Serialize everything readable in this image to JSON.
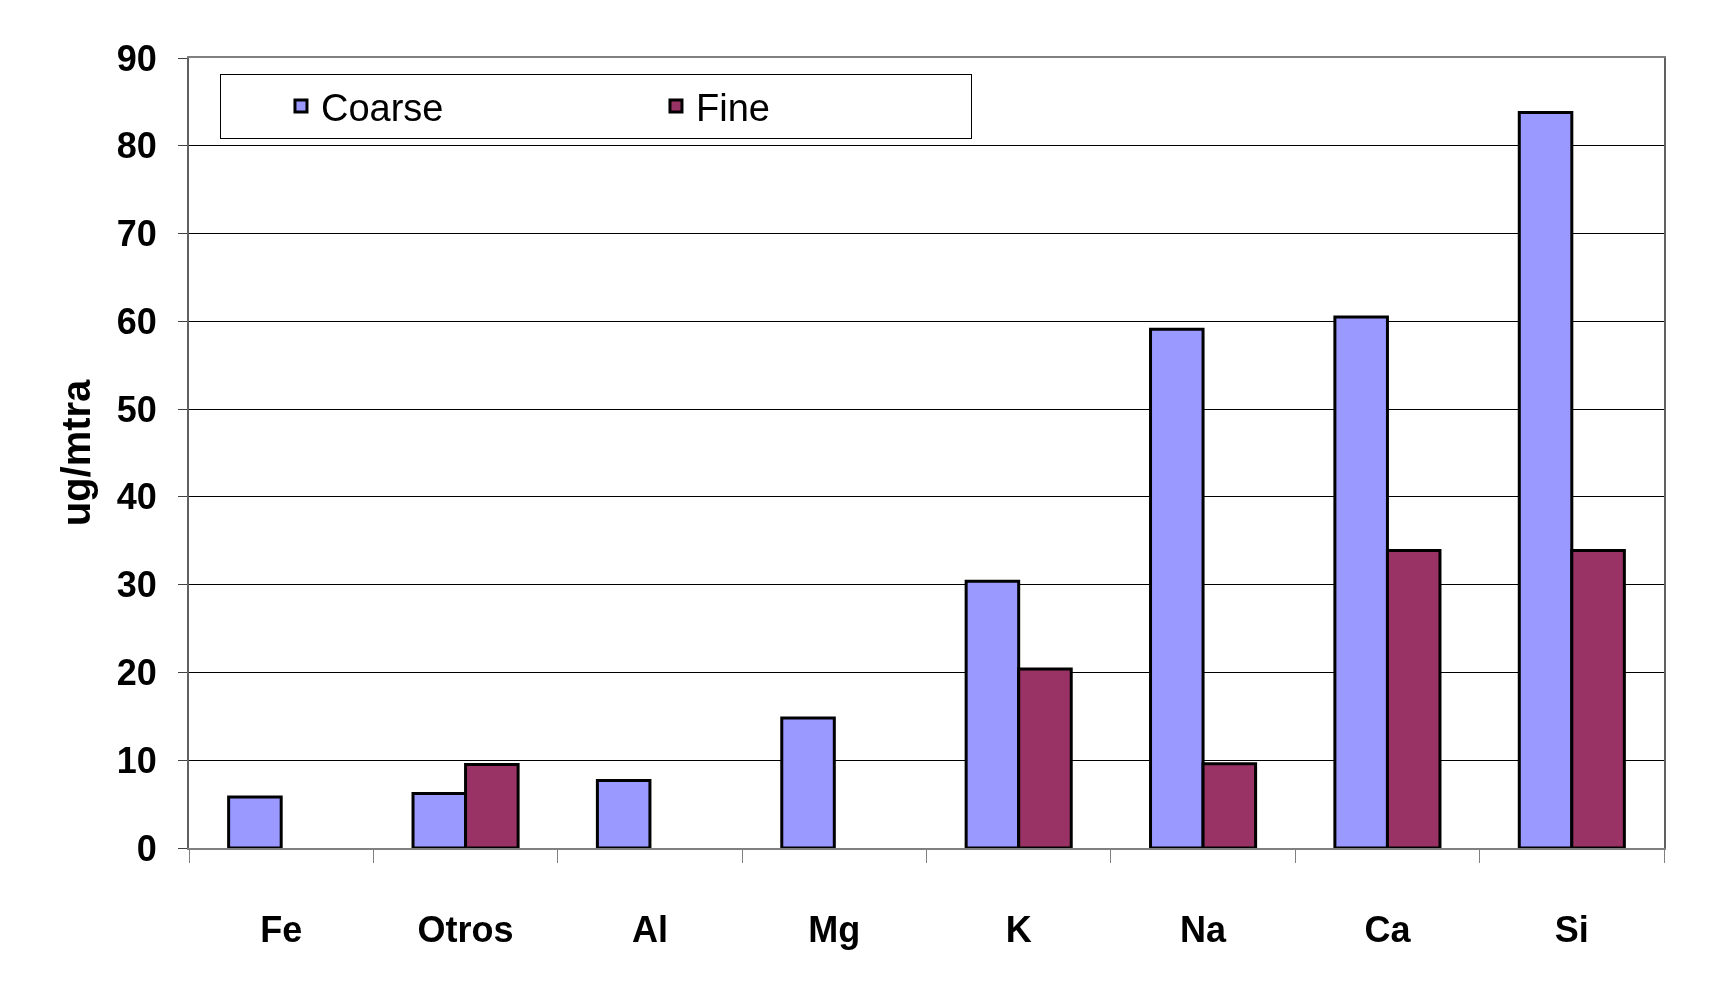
{
  "chart_data": {
    "type": "bar",
    "ylabel": "ug/mtra",
    "categories": [
      "Fe",
      "Otros",
      "Al",
      "Mg",
      "K",
      "Na",
      "Ca",
      "Si"
    ],
    "series": [
      {
        "name": "Coarse",
        "color": "#9999ff",
        "values": [
          5.8,
          6.2,
          7.7,
          14.8,
          30.4,
          59.1,
          60.5,
          83.8
        ]
      },
      {
        "name": "Fine",
        "color": "#993366",
        "values": [
          null,
          9.5,
          null,
          null,
          20.4,
          9.6,
          33.9,
          33.9
        ]
      }
    ],
    "ylim": [
      0,
      90
    ],
    "yticks": [
      0,
      10,
      20,
      30,
      40,
      50,
      60,
      70,
      80,
      90
    ],
    "grid": "y",
    "legend": "top left"
  }
}
